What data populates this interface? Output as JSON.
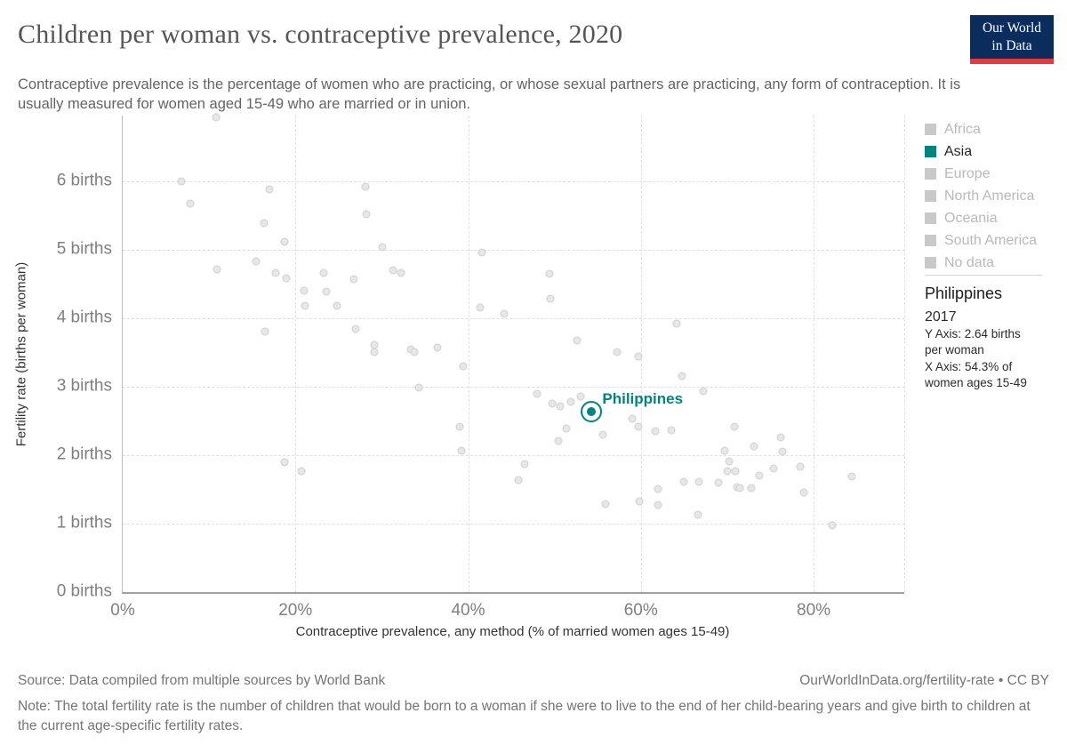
{
  "header": {
    "title": "Children per woman vs. contraceptive prevalence, 2020",
    "subtitle": "Contraceptive prevalence is the percentage of women who are practicing, or whose sexual partners are practicing, any form of contraception. It is usually measured for women aged 15-49 who are married or in union.",
    "logo": {
      "line1": "Our World",
      "line2": "in Data",
      "bg_color": "#0b2d5e",
      "bar_color": "#e6393f"
    }
  },
  "legend": {
    "items": [
      {
        "label": "Africa",
        "active": false
      },
      {
        "label": "Asia",
        "active": true
      },
      {
        "label": "Europe",
        "active": false
      },
      {
        "label": "North America",
        "active": false
      },
      {
        "label": "Oceania",
        "active": false
      },
      {
        "label": "South America",
        "active": false
      },
      {
        "label": "No data",
        "active": false
      }
    ],
    "active_color": "#00847e",
    "inactive_swatch_color": "#c9c9c9",
    "inactive_text_color": "#b9b9b9",
    "active_text_color": "#262626"
  },
  "tooltip": {
    "country": "Philippines",
    "year": "2017",
    "lines": [
      "Y Axis: 2.64 births",
      "per woman",
      "X Axis: 54.3% of",
      "women ages 15-49"
    ]
  },
  "chart_data": {
    "type": "scatter",
    "title": "Children per woman vs. contraceptive prevalence, 2020",
    "xlabel": "Contraceptive prevalence, any method (% of married women ages 15-49)",
    "ylabel": "Fertility rate (births per woman)",
    "xlim": [
      0,
      90.5
    ],
    "ylim": [
      0,
      6.96
    ],
    "xticks": [
      {
        "value": 0,
        "label": "0%"
      },
      {
        "value": 20,
        "label": "20%"
      },
      {
        "value": 40,
        "label": "40%"
      },
      {
        "value": 60,
        "label": "60%"
      },
      {
        "value": 80,
        "label": "80%"
      }
    ],
    "yticks": [
      {
        "value": 0,
        "label": "0 births"
      },
      {
        "value": 1,
        "label": "1 births"
      },
      {
        "value": 2,
        "label": "2 births"
      },
      {
        "value": 3,
        "label": "3 births"
      },
      {
        "value": 4,
        "label": "4 births"
      },
      {
        "value": 5,
        "label": "5 births"
      },
      {
        "value": 6,
        "label": "6 births"
      }
    ],
    "grid": true,
    "legend_position": "right",
    "point_color": "#e7e7e7",
    "highlight": {
      "name": "Philippines",
      "x": 54.3,
      "y": 2.64,
      "color": "#00847e"
    },
    "points": [
      [
        10.8,
        6.94
      ],
      [
        6.8,
        6.0
      ],
      [
        17.0,
        5.88
      ],
      [
        28.1,
        5.92
      ],
      [
        7.8,
        5.67
      ],
      [
        28.2,
        5.52
      ],
      [
        16.4,
        5.39
      ],
      [
        18.7,
        5.12
      ],
      [
        30.1,
        5.04
      ],
      [
        41.6,
        4.96
      ],
      [
        15.4,
        4.83
      ],
      [
        10.9,
        4.71
      ],
      [
        31.3,
        4.7
      ],
      [
        17.7,
        4.66
      ],
      [
        23.3,
        4.66
      ],
      [
        32.2,
        4.66
      ],
      [
        18.9,
        4.58
      ],
      [
        26.8,
        4.57
      ],
      [
        21.0,
        4.4
      ],
      [
        23.6,
        4.39
      ],
      [
        21.1,
        4.18
      ],
      [
        24.8,
        4.18
      ],
      [
        41.4,
        4.16
      ],
      [
        44.2,
        4.07
      ],
      [
        27.0,
        3.85
      ],
      [
        16.5,
        3.8
      ],
      [
        29.1,
        3.61
      ],
      [
        36.4,
        3.57
      ],
      [
        33.4,
        3.54
      ],
      [
        29.1,
        3.5
      ],
      [
        33.8,
        3.5
      ],
      [
        49.4,
        4.65
      ],
      [
        49.5,
        4.28
      ],
      [
        64.1,
        3.92
      ],
      [
        52.6,
        3.68
      ],
      [
        57.2,
        3.5
      ],
      [
        59.7,
        3.44
      ],
      [
        39.4,
        3.3
      ],
      [
        64.8,
        3.16
      ],
      [
        34.3,
        2.99
      ],
      [
        67.2,
        2.94
      ],
      [
        48.0,
        2.89
      ],
      [
        53.0,
        2.86
      ],
      [
        51.9,
        2.78
      ],
      [
        49.7,
        2.75
      ],
      [
        50.7,
        2.72
      ],
      [
        59.0,
        2.53
      ],
      [
        39.0,
        2.42
      ],
      [
        59.7,
        2.42
      ],
      [
        70.8,
        2.42
      ],
      [
        51.4,
        2.39
      ],
      [
        63.5,
        2.36
      ],
      [
        61.7,
        2.35
      ],
      [
        55.6,
        2.3
      ],
      [
        76.2,
        2.26
      ],
      [
        50.4,
        2.21
      ],
      [
        73.1,
        2.13
      ],
      [
        69.7,
        2.07
      ],
      [
        39.2,
        2.06
      ],
      [
        76.4,
        2.05
      ],
      [
        70.2,
        1.91
      ],
      [
        18.7,
        1.9
      ],
      [
        46.5,
        1.87
      ],
      [
        78.5,
        1.83
      ],
      [
        75.4,
        1.81
      ],
      [
        20.7,
        1.77
      ],
      [
        70.0,
        1.77
      ],
      [
        70.9,
        1.76
      ],
      [
        73.7,
        1.7
      ],
      [
        84.4,
        1.69
      ],
      [
        45.8,
        1.63
      ],
      [
        65.0,
        1.61
      ],
      [
        66.7,
        1.61
      ],
      [
        69.0,
        1.6
      ],
      [
        71.1,
        1.53
      ],
      [
        71.5,
        1.52
      ],
      [
        72.8,
        1.52
      ],
      [
        62.0,
        1.51
      ],
      [
        78.9,
        1.45
      ],
      [
        59.8,
        1.33
      ],
      [
        55.9,
        1.29
      ],
      [
        62.0,
        1.27
      ],
      [
        66.6,
        1.13
      ],
      [
        82.2,
        0.97
      ]
    ]
  },
  "footer": {
    "source": "Source: Data compiled from multiple sources by World Bank",
    "attribution": "OurWorldInData.org/fertility-rate • CC BY",
    "note": "Note: The total fertility rate is the number of children that would be born to a woman if she were to live to the end of her child-bearing years and give birth to children at the current age-specific fertility rates."
  }
}
